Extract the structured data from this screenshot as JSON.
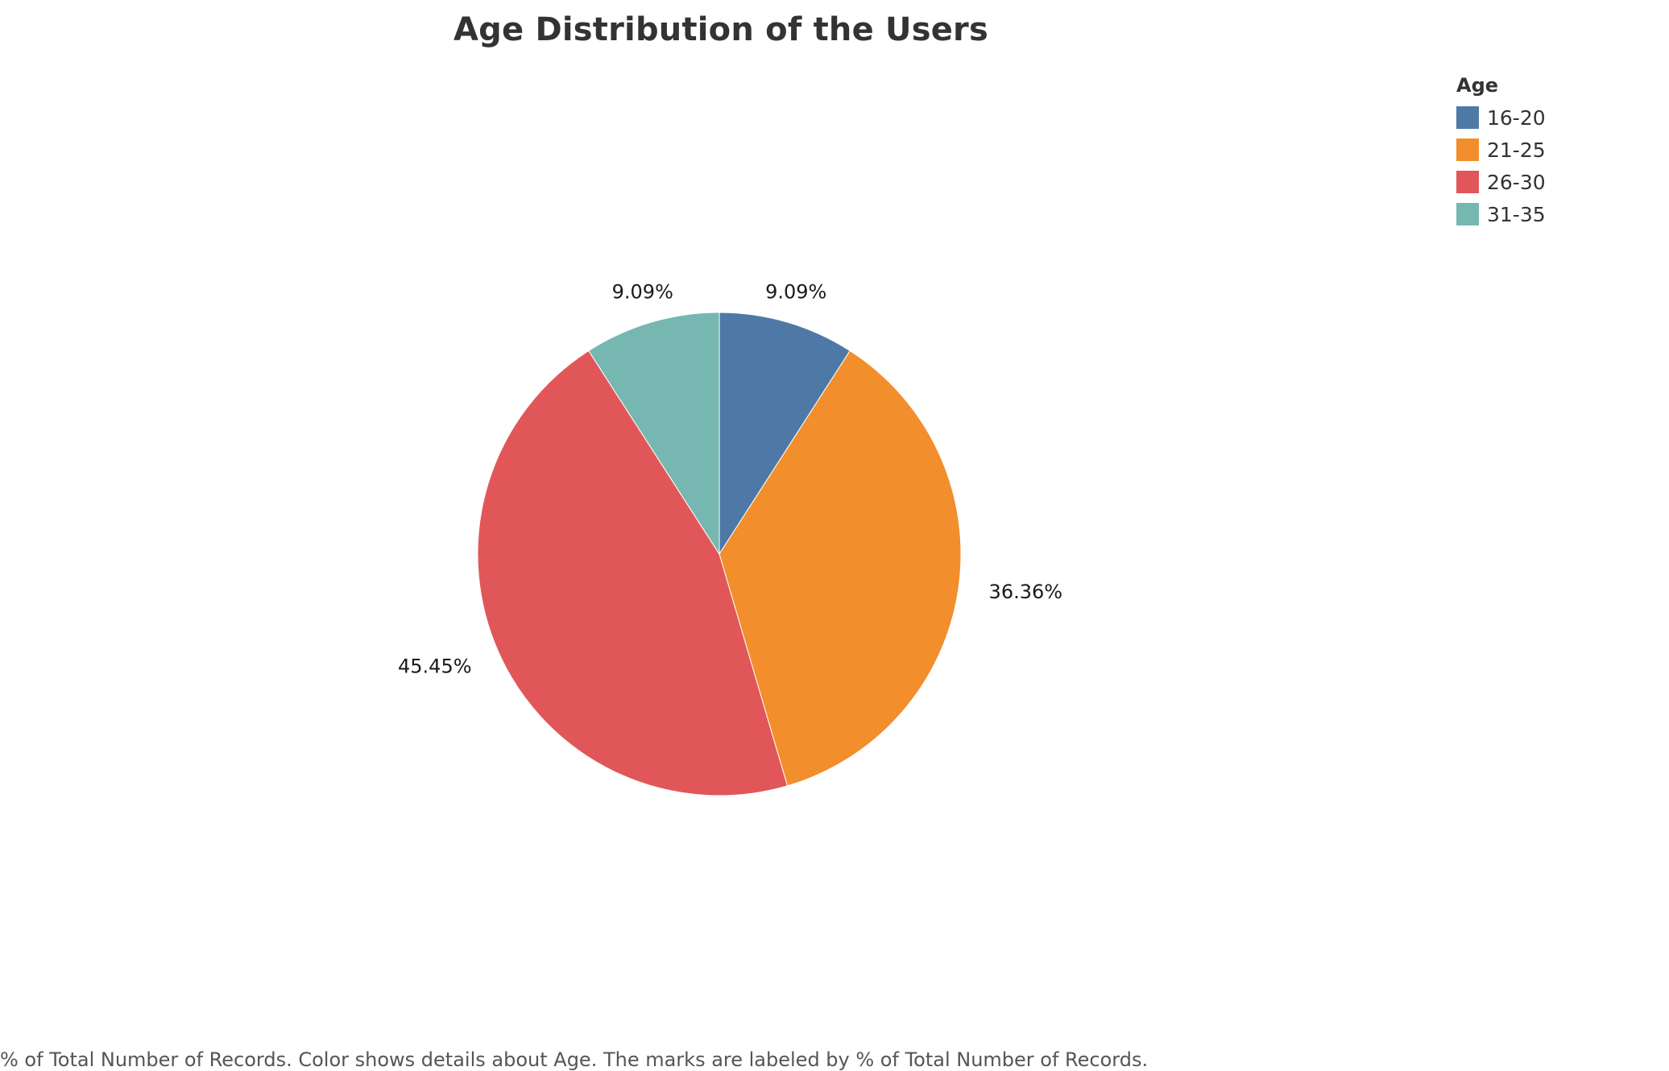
{
  "chart_data": {
    "type": "pie",
    "title": "Age Distribution of the Users",
    "legend_title": "Age",
    "legend_position": "top-right",
    "categories": [
      "16-20",
      "21-25",
      "26-30",
      "31-35"
    ],
    "values": [
      9.09,
      36.36,
      45.45,
      9.09
    ],
    "labels": [
      "9.09%",
      "36.36%",
      "45.45%",
      "9.09%"
    ],
    "colors": [
      "#4e79a7",
      "#f28e2b",
      "#e15759",
      "#76b7b2"
    ],
    "caption": "% of Total Number of Records.  Color shows details about Age.  The marks are labeled by % of Total Number of Records."
  }
}
